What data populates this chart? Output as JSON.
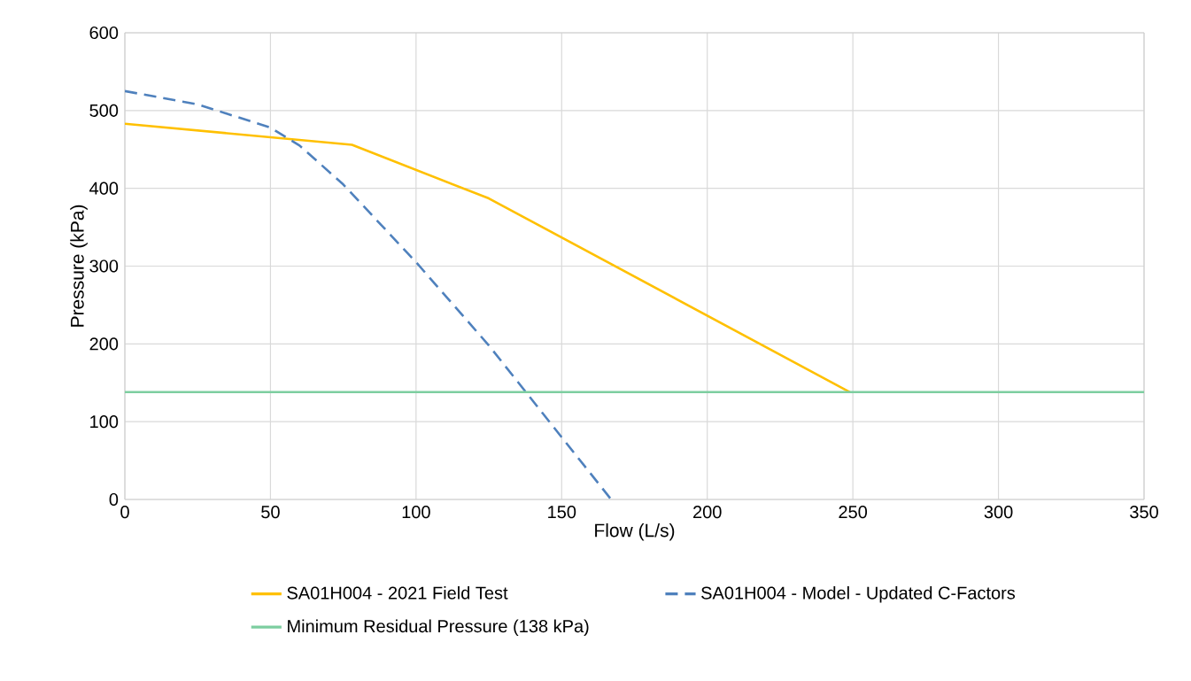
{
  "chart_data": {
    "type": "line",
    "xlabel": "Flow (L/s)",
    "ylabel": "Pressure (kPa)",
    "xlim": [
      0,
      350
    ],
    "ylim": [
      0,
      600
    ],
    "xticks": [
      0,
      50,
      100,
      150,
      200,
      250,
      300,
      350
    ],
    "yticks": [
      0,
      100,
      200,
      300,
      400,
      500,
      600
    ],
    "grid": true,
    "legend": "bottom",
    "marker": "none",
    "series": [
      {
        "name": "SA01H004 - 2021 Field Test",
        "color": "#ffc000",
        "line_style": "solid",
        "x": [
          0,
          78,
          125,
          249
        ],
        "values": [
          483,
          456,
          387,
          138
        ]
      },
      {
        "name": "SA01H004 - Model - Updated C-Factors",
        "color": "#4f81bd",
        "line_style": "dashed",
        "x": [
          0,
          25,
          50,
          60,
          75,
          100,
          125,
          150,
          167
        ],
        "values": [
          525,
          508,
          478,
          455,
          405,
          305,
          198,
          80,
          0
        ]
      },
      {
        "name": "Minimum Residual Pressure (138 kPa)",
        "color": "#7dcea0",
        "line_style": "solid",
        "x": [
          0,
          350
        ],
        "values": [
          138,
          138
        ]
      }
    ]
  }
}
